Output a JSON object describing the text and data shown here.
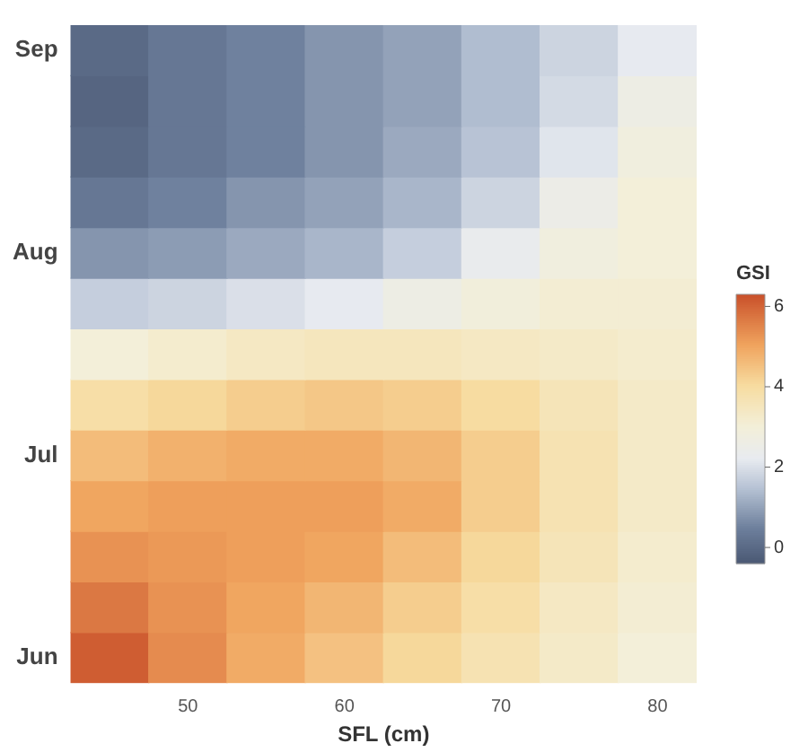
{
  "chart_data": {
    "type": "heatmap",
    "xlabel": "SFL (cm)",
    "clabel": "GSI",
    "categories": [
      null,
      "50",
      null,
      "60",
      null,
      "70",
      null,
      "80"
    ],
    "y_categories": [
      "Sep",
      null,
      null,
      null,
      "Aug",
      null,
      null,
      null,
      "Jul",
      null,
      null,
      null,
      "Jun"
    ],
    "cells": [
      [
        0.0,
        0.3,
        0.5,
        0.8,
        1.0,
        1.4,
        1.8,
        2.2
      ],
      [
        -0.1,
        0.3,
        0.5,
        0.8,
        1.0,
        1.4,
        1.9,
        2.6
      ],
      [
        0.0,
        0.3,
        0.5,
        0.8,
        1.1,
        1.5,
        2.1,
        2.8
      ],
      [
        0.3,
        0.5,
        0.8,
        1.0,
        1.3,
        1.8,
        2.5,
        3.0
      ],
      [
        0.8,
        0.9,
        1.1,
        1.3,
        1.7,
        2.3,
        2.8,
        3.0
      ],
      [
        1.7,
        1.8,
        2.0,
        2.2,
        2.6,
        2.9,
        3.1,
        3.1
      ],
      [
        3.0,
        3.2,
        3.4,
        3.5,
        3.5,
        3.4,
        3.3,
        3.2
      ],
      [
        3.9,
        4.1,
        4.3,
        4.4,
        4.3,
        4.0,
        3.6,
        3.3
      ],
      [
        4.6,
        4.8,
        4.9,
        4.9,
        4.7,
        4.3,
        3.7,
        3.3
      ],
      [
        5.0,
        5.1,
        5.1,
        5.1,
        4.9,
        4.3,
        3.7,
        3.3
      ],
      [
        5.3,
        5.2,
        5.1,
        5.0,
        4.6,
        4.1,
        3.6,
        3.2
      ],
      [
        5.7,
        5.3,
        5.0,
        4.7,
        4.3,
        3.9,
        3.4,
        3.1
      ],
      [
        6.1,
        5.4,
        4.9,
        4.5,
        4.1,
        3.7,
        3.3,
        3.0
      ]
    ],
    "clim": [
      -0.4,
      6.3
    ],
    "cticks": [
      0,
      2,
      4,
      6
    ]
  }
}
